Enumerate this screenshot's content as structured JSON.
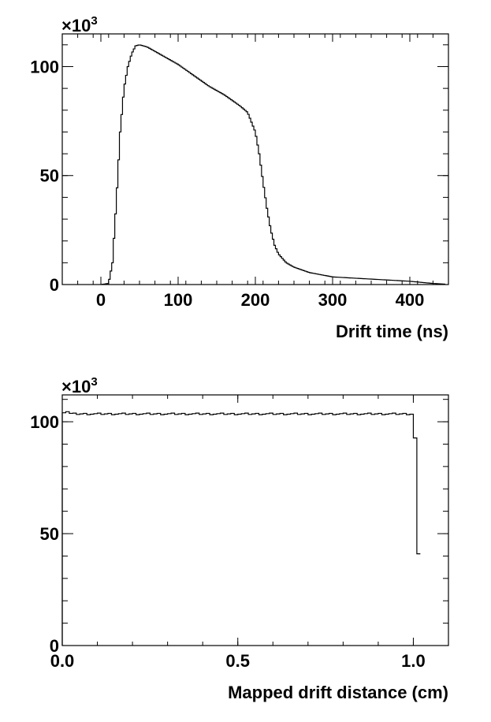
{
  "chart_data": [
    {
      "type": "histogram",
      "xlabel": "Drift time (ns)",
      "y_multiplier": "×10",
      "y_multiplier_exp": "3",
      "xlim": [
        -50,
        450
      ],
      "ylim": [
        0,
        115
      ],
      "x_ticks": [
        0,
        100,
        200,
        300,
        400
      ],
      "x_tick_labels": [
        "0",
        "100",
        "200",
        "300",
        "400"
      ],
      "y_ticks": [
        0,
        50,
        100
      ],
      "y_tick_labels": [
        "0",
        "50",
        "100"
      ],
      "grid": false,
      "profile": [
        [
          0,
          0
        ],
        [
          10,
          0.5
        ],
        [
          15,
          10
        ],
        [
          20,
          38
        ],
        [
          25,
          70
        ],
        [
          30,
          90
        ],
        [
          35,
          100
        ],
        [
          40,
          106
        ],
        [
          45,
          109.5
        ],
        [
          50,
          110
        ],
        [
          55,
          109.5
        ],
        [
          60,
          109
        ],
        [
          80,
          105
        ],
        [
          100,
          101
        ],
        [
          120,
          96
        ],
        [
          140,
          91
        ],
        [
          160,
          87
        ],
        [
          180,
          82
        ],
        [
          190,
          79
        ],
        [
          200,
          70
        ],
        [
          205,
          60
        ],
        [
          210,
          47
        ],
        [
          215,
          35
        ],
        [
          220,
          25
        ],
        [
          225,
          18
        ],
        [
          230,
          14
        ],
        [
          240,
          10
        ],
        [
          250,
          8
        ],
        [
          270,
          5.5
        ],
        [
          300,
          3.5
        ],
        [
          350,
          2.5
        ],
        [
          400,
          1.5
        ],
        [
          430,
          0.5
        ],
        [
          445,
          0.2
        ]
      ]
    },
    {
      "type": "histogram",
      "xlabel": "Mapped drift distance (cm)",
      "y_multiplier": "×10",
      "y_multiplier_exp": "3",
      "xlim": [
        0,
        1.1
      ],
      "ylim": [
        0,
        112
      ],
      "x_ticks": [
        0,
        0.5,
        1.0
      ],
      "x_tick_labels": [
        "0.0",
        "0.5",
        "1.0"
      ],
      "y_ticks": [
        0,
        50,
        100
      ],
      "y_tick_labels": [
        "0",
        "50",
        "100"
      ],
      "grid": false,
      "profile": [
        [
          0,
          103
        ],
        [
          0.01,
          105
        ],
        [
          0.02,
          104
        ],
        [
          0.03,
          103.5
        ],
        [
          1.0,
          103.5
        ],
        [
          1.01,
          82
        ],
        [
          1.02,
          0
        ]
      ]
    }
  ]
}
